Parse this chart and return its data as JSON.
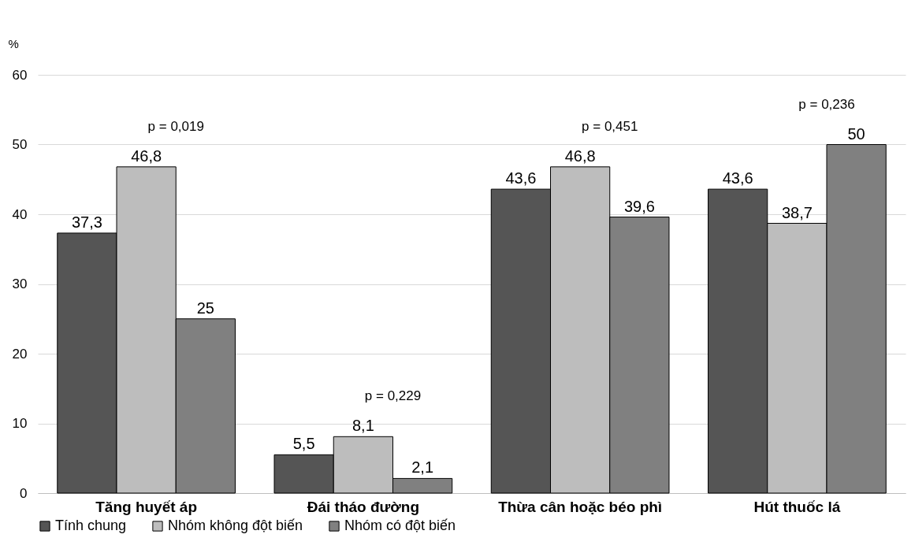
{
  "chart_data": {
    "type": "bar",
    "ylabel": "%",
    "categories": [
      "Tăng huyết áp",
      "Đái tháo đường",
      "Thừa cân hoặc béo phì",
      "Hút thuốc lá"
    ],
    "series": [
      {
        "name": "Tính chung",
        "color": "#555555",
        "values": [
          37.3,
          5.5,
          43.6,
          43.6
        ],
        "value_labels": [
          "37,3",
          "5,5",
          "43,6",
          "43,6"
        ]
      },
      {
        "name": "Nhóm không đột biến",
        "color": "#bdbdbd",
        "values": [
          46.8,
          8.1,
          46.8,
          38.7
        ],
        "value_labels": [
          "46,8",
          "8,1",
          "46,8",
          "38,7"
        ]
      },
      {
        "name": "Nhóm có đột biến",
        "color": "#808080",
        "values": [
          25,
          2.1,
          39.6,
          50
        ],
        "value_labels": [
          "25",
          "2,1",
          "39,6",
          "50"
        ]
      }
    ],
    "ylim": [
      0,
      60
    ],
    "yticks": [
      0,
      10,
      20,
      30,
      40,
      50,
      60
    ],
    "grid": "y",
    "legend": "bottom",
    "annotations": [
      "p = 0,019",
      "p = 0,229",
      "p = 0,451",
      "p = 0,236"
    ]
  }
}
